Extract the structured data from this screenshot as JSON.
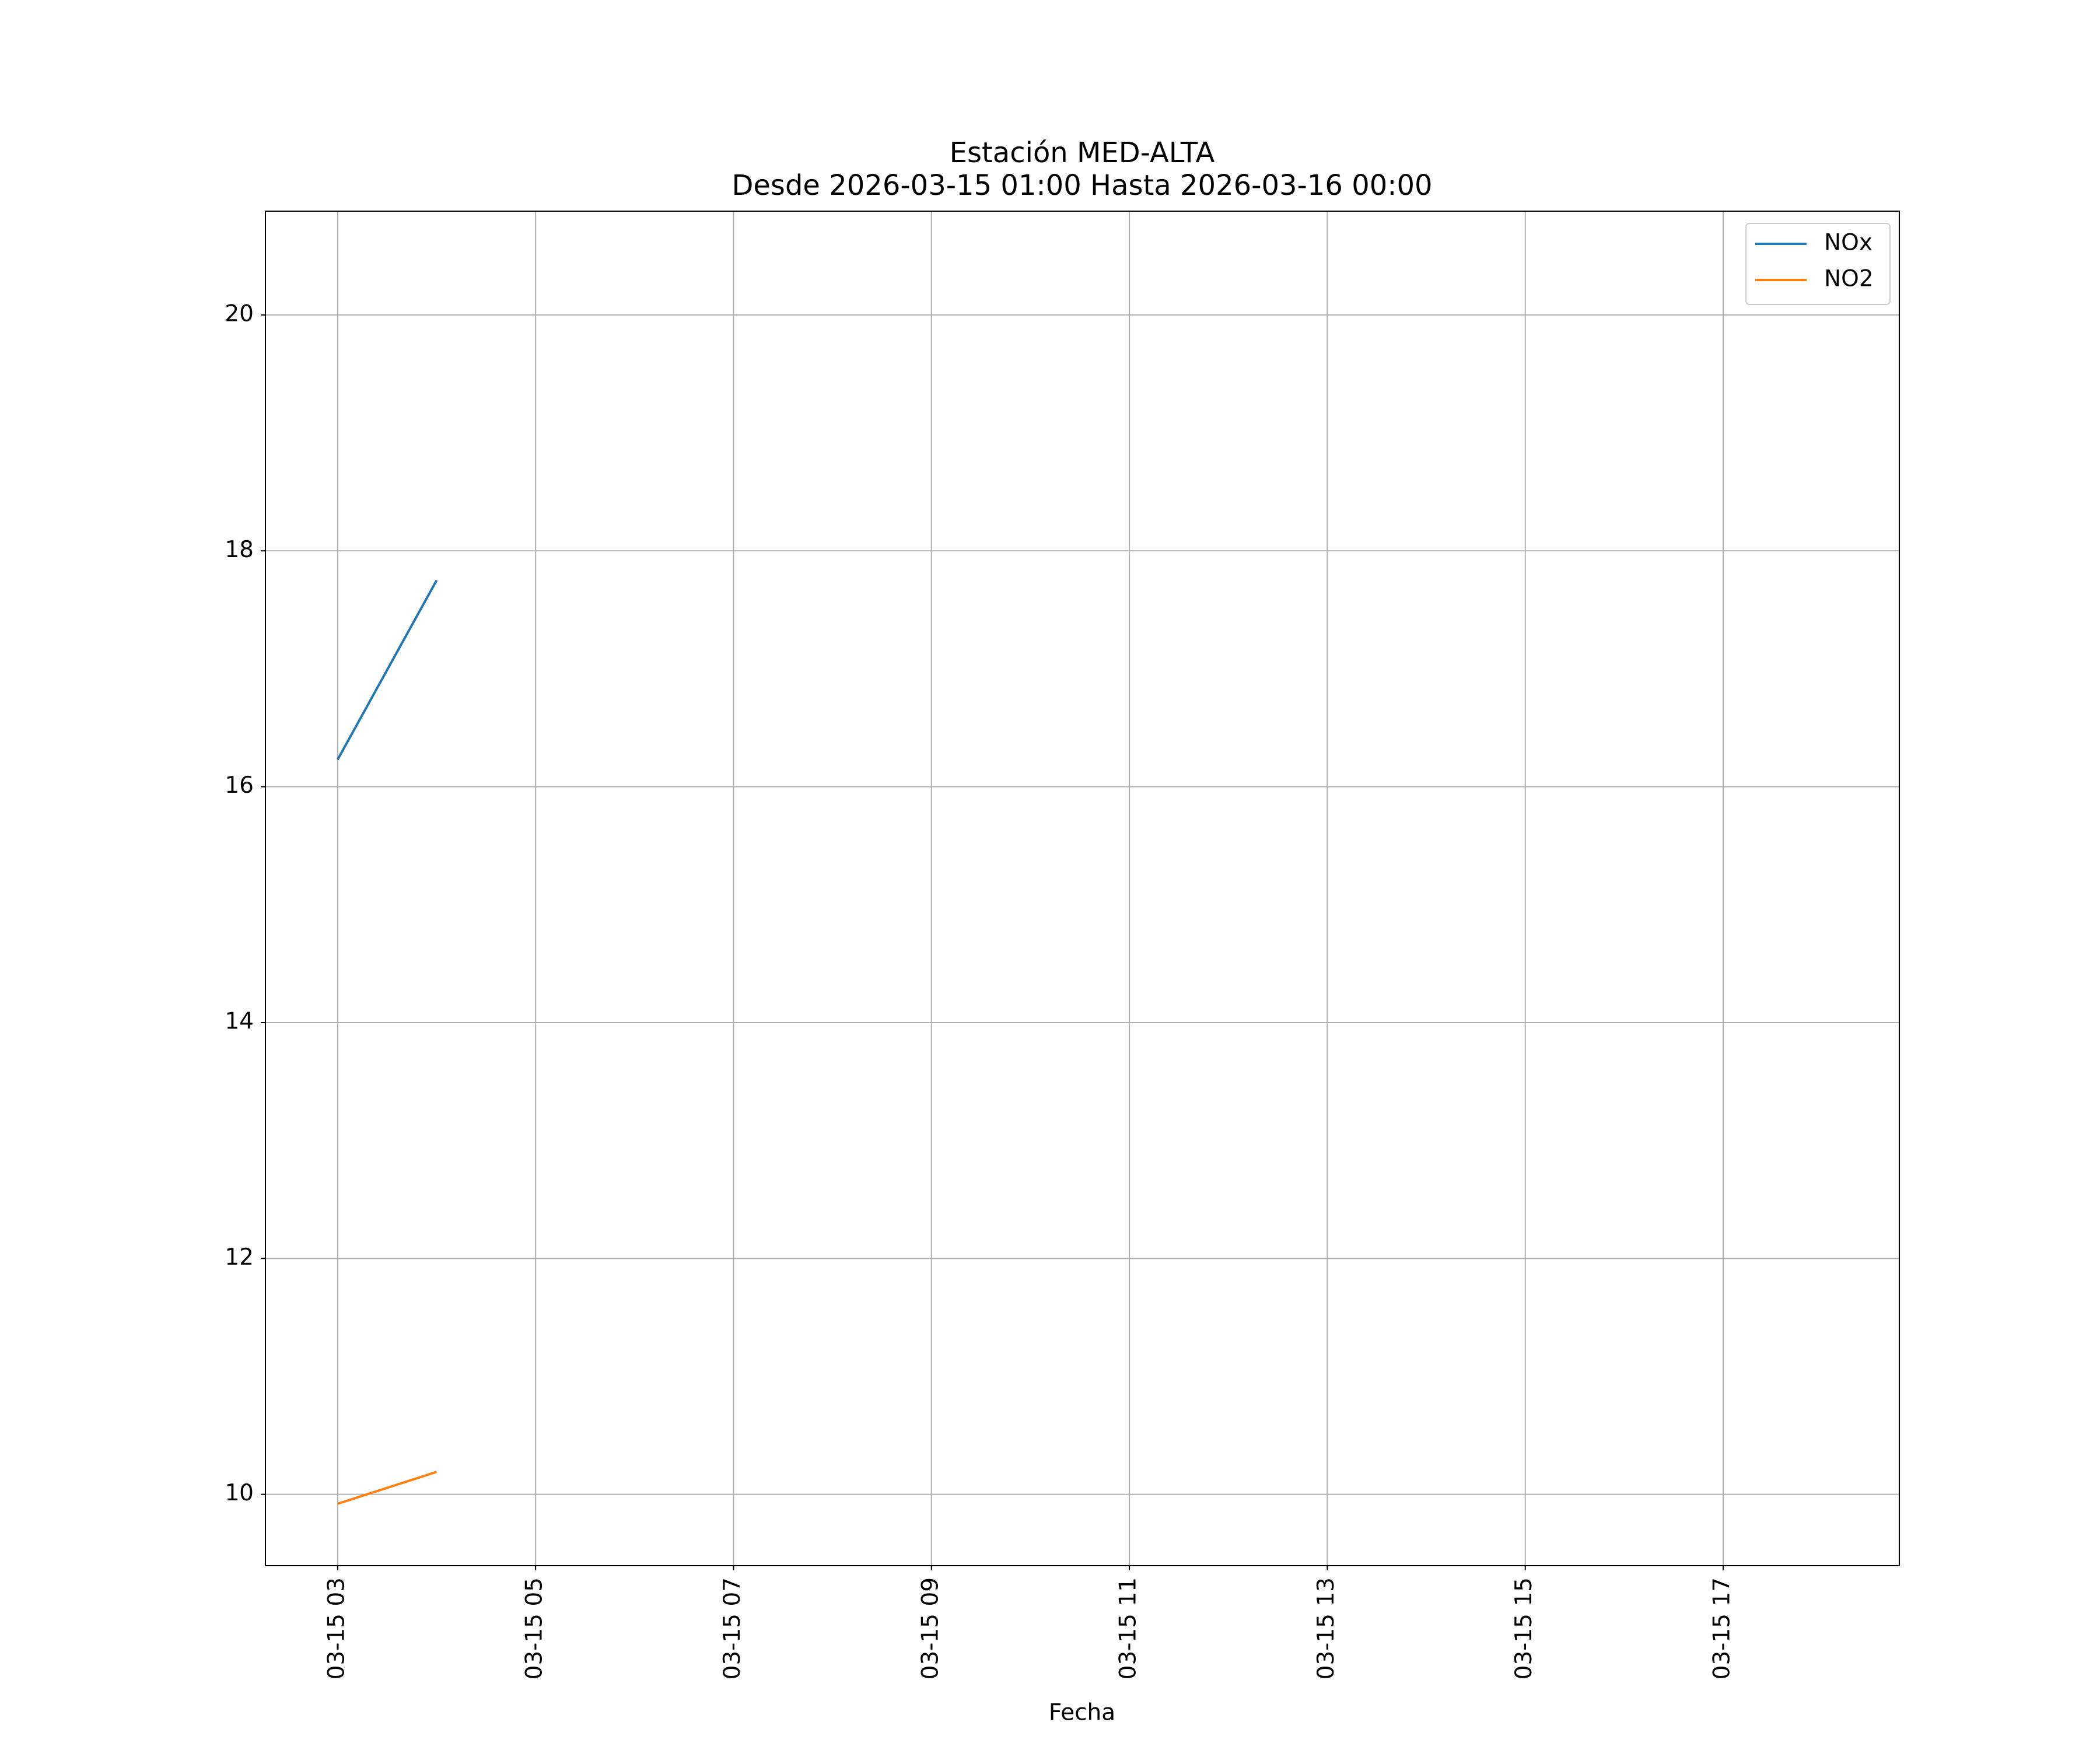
{
  "chart_data": {
    "type": "line",
    "title": "Estación MED-ALTA",
    "subtitle": "Desde 2026-03-15 01:00 Hasta 2026-03-16 00:00",
    "x_label": "Fecha",
    "x": [
      3,
      4
    ],
    "series": [
      {
        "name": "NOx",
        "color": "#1f77b4",
        "values": [
          16.23,
          17.75
        ]
      },
      {
        "name": "NO2",
        "color": "#ff7f0e",
        "values": [
          9.92,
          10.19
        ]
      }
    ],
    "xlim": [
      2.27,
      18.78
    ],
    "xticks": [
      {
        "value": 3,
        "label": "03-15 03"
      },
      {
        "value": 5,
        "label": "03-15 05"
      },
      {
        "value": 7,
        "label": "03-15 07"
      },
      {
        "value": 9,
        "label": "03-15 09"
      },
      {
        "value": 11,
        "label": "03-15 11"
      },
      {
        "value": 13,
        "label": "03-15 13"
      },
      {
        "value": 15,
        "label": "03-15 15"
      },
      {
        "value": 17,
        "label": "03-15 17"
      }
    ],
    "ylim": [
      9.395,
      20.88
    ],
    "yticks": [
      10,
      12,
      14,
      16,
      18,
      20
    ],
    "grid": true,
    "legend": "upper-right"
  }
}
